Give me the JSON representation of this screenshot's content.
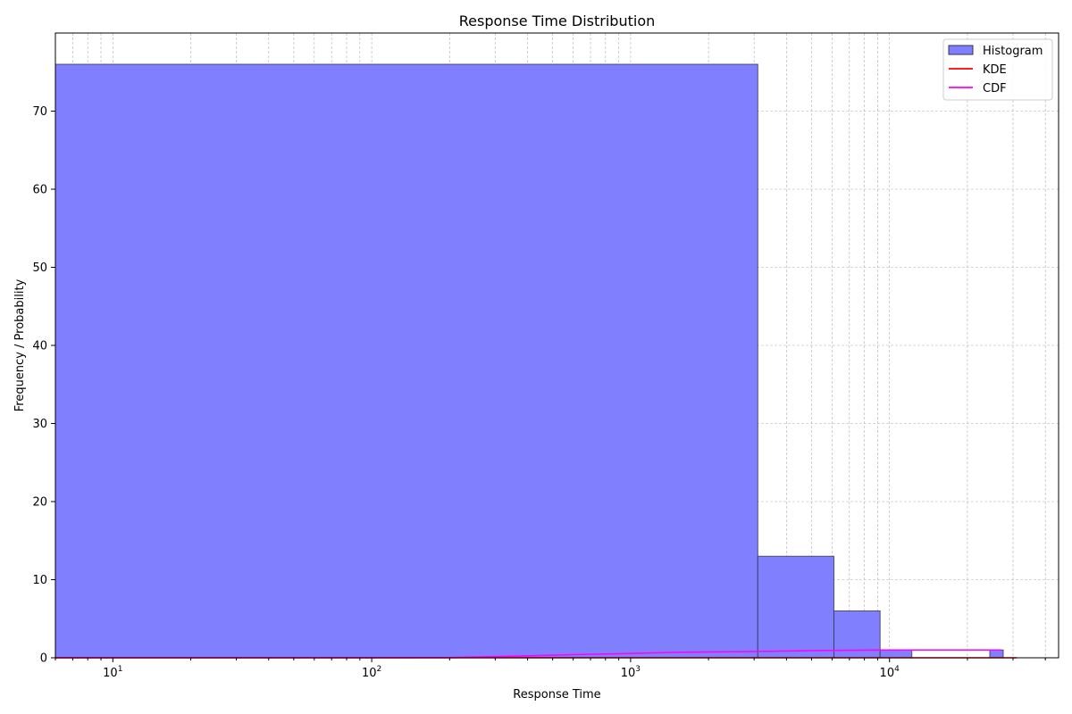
{
  "chart_data": {
    "type": "bar",
    "title": "Response Time Distribution",
    "xlabel": "Response Time",
    "ylabel": "Frequency / Probability",
    "x_scale": "log",
    "xlim": [
      6,
      45000
    ],
    "ylim": [
      0,
      80
    ],
    "y_ticks": [
      0,
      10,
      20,
      30,
      40,
      50,
      60,
      70
    ],
    "x_major_ticks": [
      {
        "value": 10,
        "base": "10",
        "exp": "1"
      },
      {
        "value": 100,
        "base": "10",
        "exp": "2"
      },
      {
        "value": 1000,
        "base": "10",
        "exp": "3"
      },
      {
        "value": 10000,
        "base": "10",
        "exp": "4"
      }
    ],
    "grid": true,
    "legend_position": "top-right",
    "histogram": {
      "name": "Histogram",
      "color": "#8080ff",
      "edge_color": "#333355",
      "bins": [
        {
          "start": 6,
          "end": 3100,
          "count": 76
        },
        {
          "start": 3100,
          "end": 6100,
          "count": 13
        },
        {
          "start": 6100,
          "end": 9200,
          "count": 6
        },
        {
          "start": 9200,
          "end": 12200,
          "count": 1
        },
        {
          "start": 12200,
          "end": 15300,
          "count": 0
        },
        {
          "start": 15300,
          "end": 18300,
          "count": 0
        },
        {
          "start": 18300,
          "end": 21400,
          "count": 0
        },
        {
          "start": 21400,
          "end": 24400,
          "count": 0
        },
        {
          "start": 24400,
          "end": 27500,
          "count": 1
        }
      ]
    },
    "series": [
      {
        "name": "KDE",
        "color": "#ff0000",
        "points": [
          [
            6,
            0
          ],
          [
            100,
            0
          ],
          [
            1000,
            0.0003
          ],
          [
            10000,
            2e-05
          ],
          [
            31000,
            0
          ]
        ]
      },
      {
        "name": "CDF",
        "color": "#ff00ff",
        "points": [
          [
            6,
            0
          ],
          [
            100,
            0
          ],
          [
            200,
            0.02
          ],
          [
            300,
            0.15
          ],
          [
            600,
            0.4
          ],
          [
            1000,
            0.55
          ],
          [
            1500,
            0.7
          ],
          [
            3000,
            0.8
          ],
          [
            5000,
            0.92
          ],
          [
            9000,
            0.99
          ],
          [
            12000,
            1
          ],
          [
            27000,
            1
          ]
        ]
      }
    ]
  }
}
